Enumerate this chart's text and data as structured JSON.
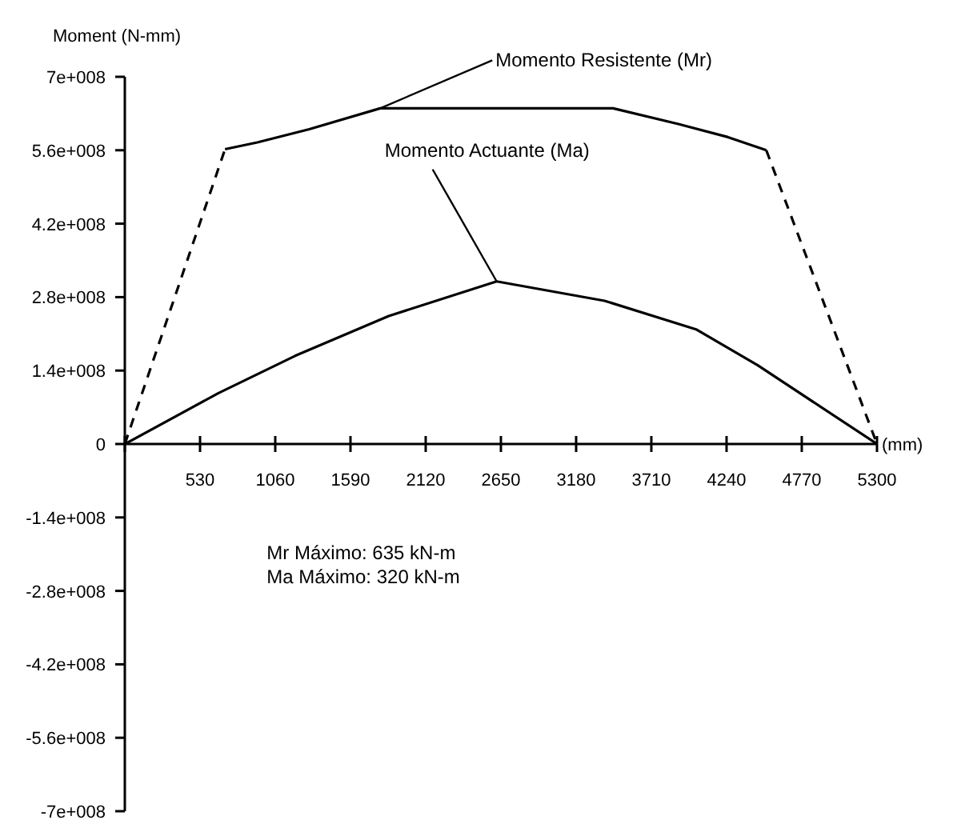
{
  "chart_data": {
    "type": "line",
    "ylabel": "Moment (N-mm)",
    "xlabel": "(mm)",
    "xlim": [
      0,
      5300
    ],
    "xticks": [
      {
        "value": 0,
        "label": null
      },
      530,
      1060,
      1590,
      2120,
      2650,
      3180,
      3710,
      4240,
      4770,
      5300
    ],
    "ylim": [
      -700000000,
      700000000
    ],
    "yticks": [
      {
        "value": 700000000,
        "label": "7e+008"
      },
      {
        "value": 560000000,
        "label": "5.6e+008"
      },
      {
        "value": 420000000,
        "label": "4.2e+008"
      },
      {
        "value": 280000000,
        "label": "2.8e+008"
      },
      {
        "value": 140000000,
        "label": "1.4e+008"
      },
      0,
      {
        "value": -140000000,
        "label": "-1.4e+008"
      },
      {
        "value": -280000000,
        "label": "-2.8e+008"
      },
      {
        "value": -420000000,
        "label": "-4.2e+008"
      },
      {
        "value": -560000000,
        "label": "-5.6e+008"
      },
      {
        "value": -700000000,
        "label": "-7e+008"
      }
    ],
    "marker": "none",
    "series": [
      {
        "color": "#000000",
        "line_style": "dashed",
        "x": [
          0,
          706
        ],
        "values": [
          0,
          562000000
        ]
      },
      {
        "name": "Momento Resistente (Mr)",
        "color": "#000000",
        "line_style": "solid",
        "x": [
          706,
          934,
          1300,
          1800,
          2540,
          3440,
          3900,
          4250,
          4520
        ],
        "values": [
          562000000,
          575000000,
          600000000,
          640000000,
          640000000,
          640000000,
          610000000,
          585000000,
          560000000
        ]
      },
      {
        "color": "#000000",
        "line_style": "dashed",
        "x": [
          4520,
          5300
        ],
        "values": [
          560000000,
          0
        ]
      },
      {
        "name": "Momento Actuante (Ma)",
        "color": "#000000",
        "line_style": "solid",
        "x": [
          0,
          660,
          1200,
          1860,
          2620,
          3380,
          4030,
          4460,
          5300
        ],
        "values": [
          0,
          97000000,
          168000000,
          244000000,
          310000000,
          273000000,
          218000000,
          150000000,
          0
        ]
      }
    ],
    "annotations": [
      "Mr Máximo: 635 kN-m",
      "Ma Máximo: 320 kN-m"
    ]
  }
}
